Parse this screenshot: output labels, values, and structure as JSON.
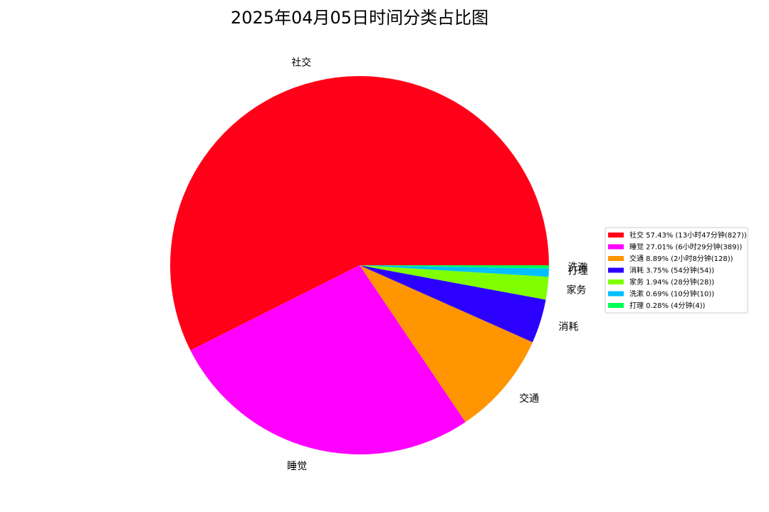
{
  "chart_data": {
    "type": "pie",
    "title": "2025年04月05日时间分类占比图",
    "start_angle_deg": 0,
    "direction": "counterclockwise",
    "legend_position": "right",
    "slices": [
      {
        "label": "社交",
        "value": 827,
        "percent": 57.43,
        "legend": "社交 57.43% (13小时47分钟(827))",
        "color": "#ff0018"
      },
      {
        "label": "睡觉",
        "value": 389,
        "percent": 27.01,
        "legend": "睡觉 27.01% (6小时29分钟(389))",
        "color": "#ff00ff"
      },
      {
        "label": "交通",
        "value": 128,
        "percent": 8.89,
        "legend": "交通 8.89% (2小时8分钟(128))",
        "color": "#ff9500"
      },
      {
        "label": "消耗",
        "value": 54,
        "percent": 3.75,
        "legend": "消耗 3.75% (54分钟(54))",
        "color": "#2b00ff"
      },
      {
        "label": "家务",
        "value": 28,
        "percent": 1.94,
        "legend": "家务 1.94% (28分钟(28))",
        "color": "#80ff00"
      },
      {
        "label": "洗漱",
        "value": 10,
        "percent": 0.69,
        "legend": "洗漱 0.69% (10分钟(10))",
        "color": "#00bfff"
      },
      {
        "label": "打理",
        "value": 4,
        "percent": 0.28,
        "legend": "打理 0.28% (4分钟(4))",
        "color": "#00ff55"
      }
    ]
  }
}
